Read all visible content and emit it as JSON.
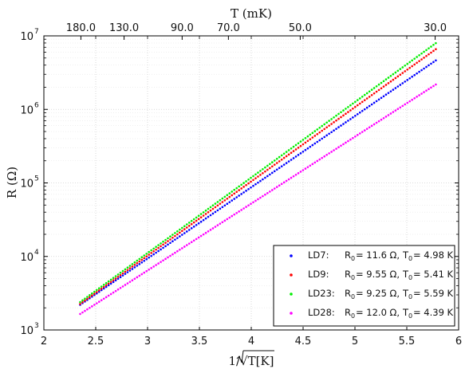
{
  "chart_data": {
    "type": "scatter",
    "title": "",
    "xlabel": "1/√T[K]",
    "ylabel": "R (Ω)",
    "top_xlabel": "T (mK)",
    "xlim": [
      2,
      6
    ],
    "ylim": [
      1000,
      10000000
    ],
    "yscale": "log",
    "grid": true,
    "legend_position": "bottom-right",
    "x_ticks": [
      "2",
      "2.5",
      "3",
      "3.5",
      "4",
      "4.5",
      "5",
      "5.5",
      "6"
    ],
    "y_ticks": [
      {
        "base": "10",
        "exp": "3",
        "value": 1000
      },
      {
        "base": "10",
        "exp": "4",
        "value": 10000
      },
      {
        "base": "10",
        "exp": "5",
        "value": 100000
      },
      {
        "base": "10",
        "exp": "6",
        "value": 1000000
      },
      {
        "base": "10",
        "exp": "7",
        "value": 10000000
      }
    ],
    "top_ticks": [
      {
        "label": "180.0",
        "T_mK": 180
      },
      {
        "label": "130.0",
        "T_mK": 130
      },
      {
        "label": "90.0",
        "T_mK": 90
      },
      {
        "label": "70.0",
        "T_mK": 70
      },
      {
        "label": "50.0",
        "T_mK": 50
      },
      {
        "label": "30.0",
        "T_mK": 30
      }
    ],
    "series": [
      {
        "name": "LD7",
        "color": "#0000ff",
        "R0": "11.6",
        "T0": "4.98",
        "x_start": 2.35,
        "x_end": 5.78,
        "legend": {
          "name": "LD7:",
          "r_value": "= 11.6 Ω,",
          "t_value": "= 4.98 K"
        }
      },
      {
        "name": "LD9",
        "color": "#ff0000",
        "R0": "9.55",
        "T0": "5.41",
        "x_start": 2.35,
        "x_end": 5.78,
        "legend": {
          "name": "LD9:",
          "r_value": "= 9.55 Ω,",
          "t_value": "= 5.41 K"
        }
      },
      {
        "name": "LD23",
        "color": "#00ee00",
        "R0": "9.25",
        "T0": "5.59",
        "x_start": 2.35,
        "x_end": 5.78,
        "legend": {
          "name": "LD23:",
          "r_value": "= 9.25 Ω,",
          "t_value": "= 5.59 K"
        }
      },
      {
        "name": "LD28",
        "color": "#ff00ff",
        "R0": "12.0",
        "T0": "4.39",
        "x_start": 2.35,
        "x_end": 5.78,
        "legend": {
          "name": "LD28:",
          "r_value": "= 12.0 Ω,",
          "t_value": "= 4.39 K"
        }
      }
    ],
    "legend_symbols": {
      "r": "R",
      "t": "T",
      "sub": "0"
    }
  }
}
